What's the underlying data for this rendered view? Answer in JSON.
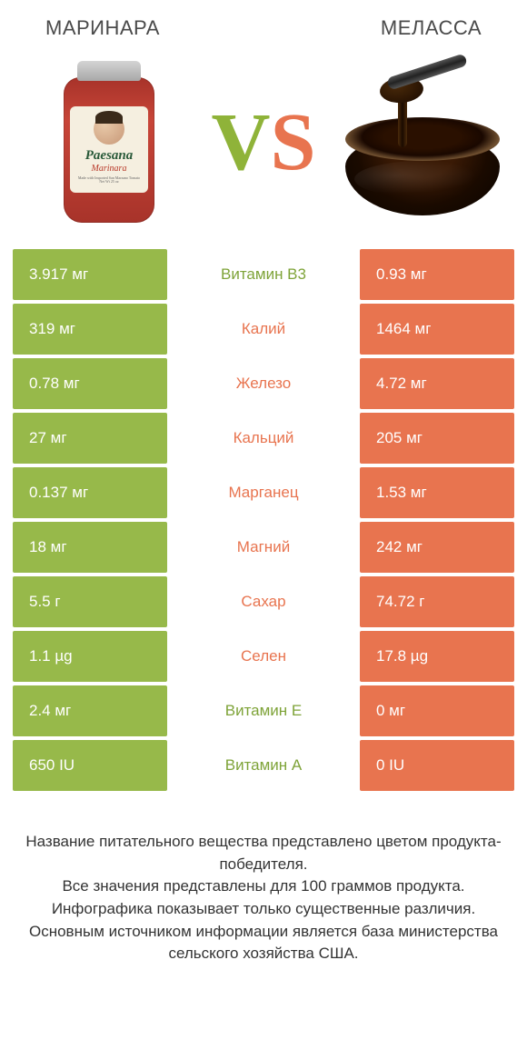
{
  "titles": {
    "left": "МАРИНАРА",
    "right": "МЕЛАССА"
  },
  "vs": {
    "v": "V",
    "s": "S"
  },
  "jar": {
    "brand": "Paesana",
    "sub": "Marinara"
  },
  "colors": {
    "green": "#97b94a",
    "orange": "#e8744f",
    "green_text": "#7ea338",
    "orange_text": "#e8744f"
  },
  "rows": [
    {
      "left": "3.917 мг",
      "mid": "Витамин B3",
      "right": "0.93 мг",
      "winner": "left"
    },
    {
      "left": "319 мг",
      "mid": "Калий",
      "right": "1464 мг",
      "winner": "right"
    },
    {
      "left": "0.78 мг",
      "mid": "Железо",
      "right": "4.72 мг",
      "winner": "right"
    },
    {
      "left": "27 мг",
      "mid": "Кальций",
      "right": "205 мг",
      "winner": "right"
    },
    {
      "left": "0.137 мг",
      "mid": "Марганец",
      "right": "1.53 мг",
      "winner": "right"
    },
    {
      "left": "18 мг",
      "mid": "Магний",
      "right": "242 мг",
      "winner": "right"
    },
    {
      "left": "5.5 г",
      "mid": "Сахар",
      "right": "74.72 г",
      "winner": "right"
    },
    {
      "left": "1.1 µg",
      "mid": "Селен",
      "right": "17.8 µg",
      "winner": "right"
    },
    {
      "left": "2.4 мг",
      "mid": "Витамин E",
      "right": "0 мг",
      "winner": "left"
    },
    {
      "left": "650 IU",
      "mid": "Витамин A",
      "right": "0 IU",
      "winner": "left"
    }
  ],
  "footer": "Название питательного вещества представлено цветом продукта-победителя.\nВсе значения представлены для 100 граммов продукта.\nИнфографика показывает только существенные различия.\nОсновным источником информации является база министерства сельского хозяйства США."
}
